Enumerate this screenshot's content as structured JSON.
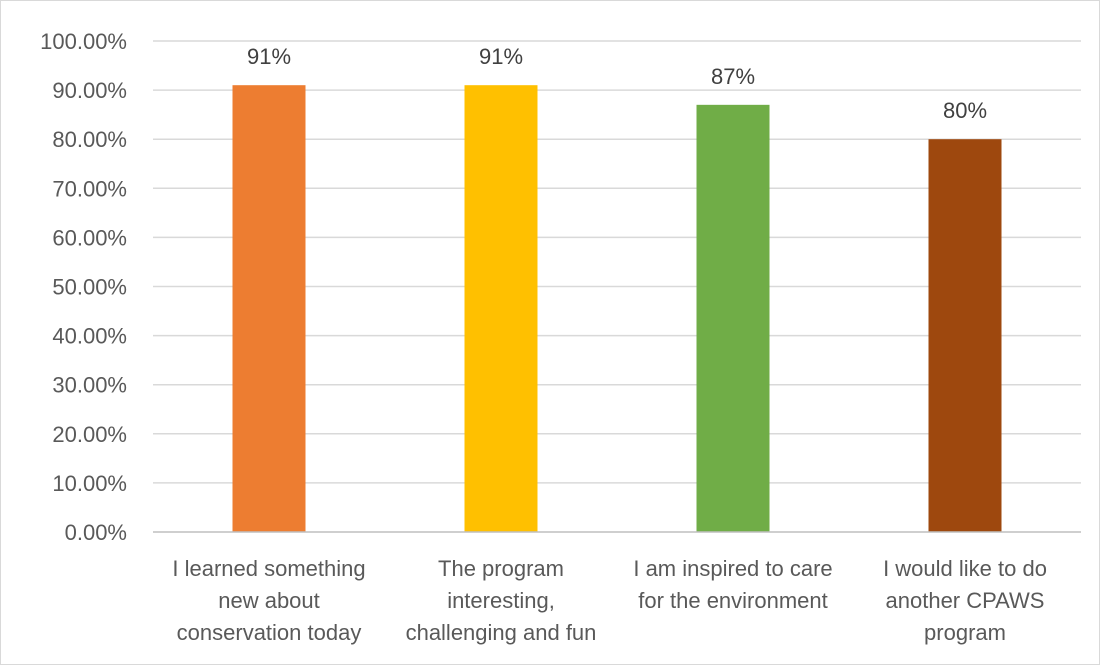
{
  "chart_data": {
    "type": "bar",
    "title": "",
    "xlabel": "",
    "ylabel": "",
    "ylim": [
      0,
      1
    ],
    "yticks": [
      "0.00%",
      "10.00%",
      "20.00%",
      "30.00%",
      "40.00%",
      "50.00%",
      "60.00%",
      "70.00%",
      "80.00%",
      "90.00%",
      "100.00%"
    ],
    "grid": true,
    "legend": "none",
    "categories": [
      [
        "I learned something",
        "new about",
        "conservation today"
      ],
      [
        "The program",
        "interesting,",
        "challenging and fun"
      ],
      [
        "I am inspired to care",
        "for the environment"
      ],
      [
        "I would like to do",
        "another CPAWS",
        "program"
      ]
    ],
    "values": [
      0.91,
      0.91,
      0.87,
      0.8
    ],
    "data_labels": [
      "91%",
      "91%",
      "87%",
      "80%"
    ],
    "colors": [
      "#ED7D31",
      "#FFC000",
      "#70AD47",
      "#9E480E"
    ]
  }
}
